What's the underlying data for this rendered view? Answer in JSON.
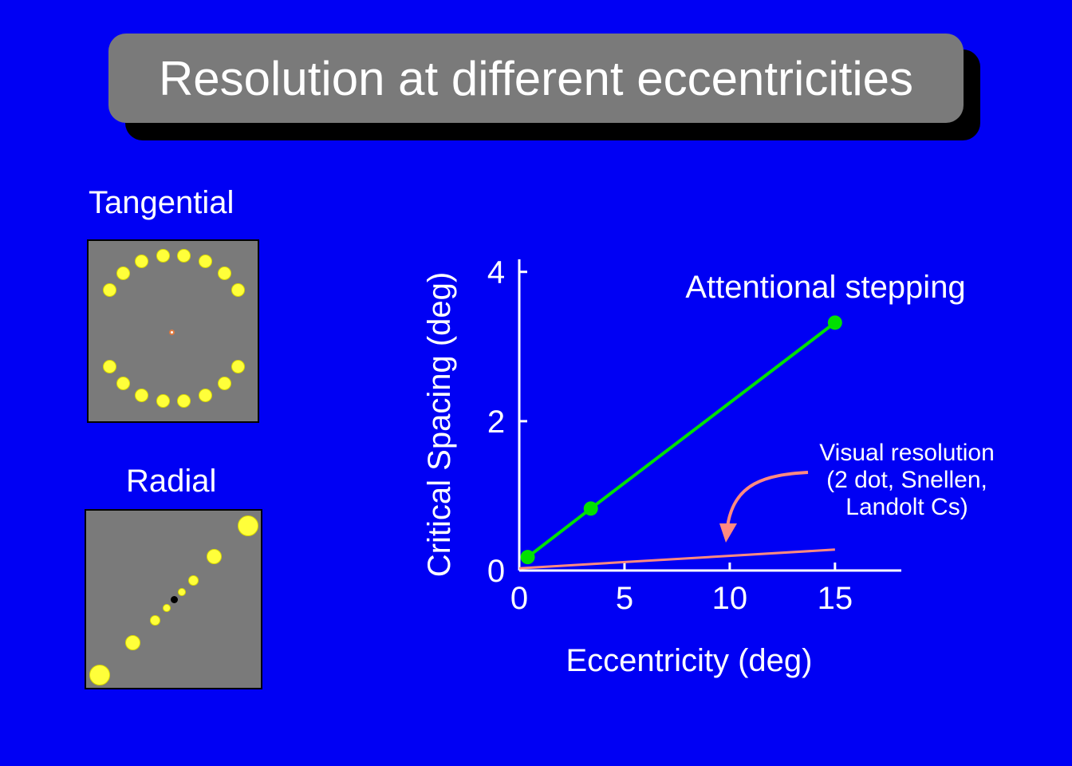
{
  "title": "Resolution at different eccentricities",
  "panels": {
    "tangential_label": "Tangential",
    "radial_label": "Radial"
  },
  "colors": {
    "background": "#0000f4",
    "title_box": "#7a7a7a",
    "stimulus_box": "#7a7a7a",
    "dot": "#ffff3a",
    "attentional_line": "#00e000",
    "resolution_line": "#ff8a80"
  },
  "chart_data": {
    "type": "line",
    "xlabel": "Eccentricity (deg)",
    "ylabel": "Critical Spacing (deg)",
    "xlim": [
      0,
      18
    ],
    "ylim": [
      0,
      4.2
    ],
    "xticks": [
      0,
      5,
      10,
      15
    ],
    "yticks": [
      0,
      2,
      4
    ],
    "grid": false,
    "series": [
      {
        "name": "Attentional stepping",
        "x": [
          0.4,
          3.4,
          15
        ],
        "y": [
          0.18,
          0.83,
          3.32
        ],
        "color": "#00e000",
        "markers": true
      },
      {
        "name": "",
        "x": [
          0,
          15
        ],
        "y": [
          0.03,
          0.28
        ],
        "color": "#ff8a80",
        "markers": false
      }
    ],
    "annotations": [
      {
        "text": "Attentional stepping"
      },
      {
        "lines": [
          "Visual resolution",
          "(2 dot, Snellen,",
          "Landolt Cs)"
        ]
      }
    ]
  }
}
